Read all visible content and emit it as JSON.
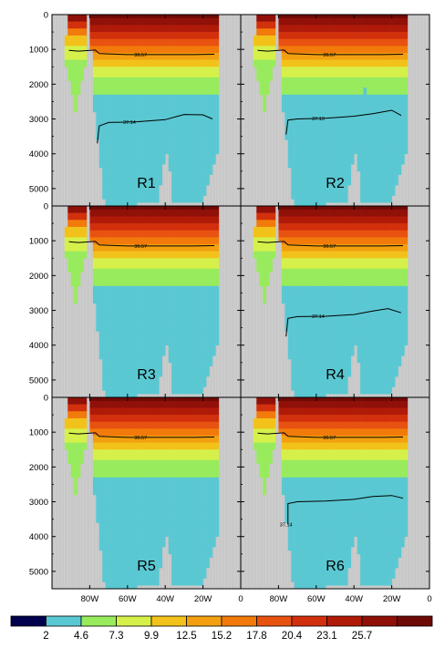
{
  "chart_data": {
    "type": "heatmap",
    "panel_labels": [
      "R1",
      "R2",
      "R3",
      "R4",
      "R5",
      "R6"
    ],
    "y_ticks": [
      0,
      1000,
      2000,
      3000,
      4000,
      5000
    ],
    "ylim": [
      0,
      5500
    ],
    "y_reversed": true,
    "xlim": [
      100,
      0
    ],
    "x_ticks": [
      {
        "value": 80,
        "label": "80W"
      },
      {
        "value": 60,
        "label": "60W"
      },
      {
        "value": 40,
        "label": "40W"
      },
      {
        "value": 20,
        "label": "20W"
      },
      {
        "value": 0,
        "label": "0"
      }
    ],
    "land_color": "#c8c8c8",
    "colorbar": {
      "labels": [
        "2",
        "4.6",
        "7.3",
        "9.9",
        "12.5",
        "15.2",
        "17.8",
        "20.4",
        "23.1",
        "25.7"
      ],
      "colors": [
        "#00004c",
        "#5ac8d2",
        "#98eb5c",
        "#d6f04a",
        "#f2c21a",
        "#f3a010",
        "#f27a0a",
        "#e85210",
        "#d2300c",
        "#b01a08",
        "#901008",
        "#6e0a06"
      ]
    },
    "isolines": [
      {
        "panel": "R1",
        "label": "36.57",
        "label_x": 53,
        "points": [
          [
            91,
            1030
          ],
          [
            86,
            1050
          ],
          [
            77,
            1020
          ],
          [
            75,
            1120
          ],
          [
            60,
            1150
          ],
          [
            40,
            1150
          ],
          [
            25,
            1150
          ],
          [
            14,
            1140
          ]
        ]
      },
      {
        "panel": "R1",
        "label": "37.14",
        "label_x": 59,
        "points": [
          [
            76,
            3700
          ],
          [
            75,
            3200
          ],
          [
            70,
            3100
          ],
          [
            55,
            3080
          ],
          [
            40,
            3020
          ],
          [
            30,
            2870
          ],
          [
            20,
            2880
          ],
          [
            15,
            3000
          ]
        ]
      },
      {
        "panel": "R2",
        "label": "36.57",
        "label_x": 53,
        "points": [
          [
            91,
            1030
          ],
          [
            86,
            1050
          ],
          [
            77,
            1020
          ],
          [
            75,
            1120
          ],
          [
            60,
            1150
          ],
          [
            40,
            1150
          ],
          [
            25,
            1150
          ],
          [
            14,
            1140
          ]
        ]
      },
      {
        "panel": "R2",
        "label": "37.13",
        "label_x": 59,
        "points": [
          [
            76,
            3450
          ],
          [
            75,
            3030
          ],
          [
            70,
            3000
          ],
          [
            55,
            2980
          ],
          [
            40,
            2920
          ],
          [
            30,
            2850
          ],
          [
            20,
            2750
          ],
          [
            15,
            2900
          ]
        ]
      },
      {
        "panel": "R3",
        "label": "36.57",
        "label_x": 53,
        "points": [
          [
            91,
            1030
          ],
          [
            86,
            1050
          ],
          [
            77,
            1020
          ],
          [
            75,
            1120
          ],
          [
            60,
            1150
          ],
          [
            40,
            1150
          ],
          [
            25,
            1150
          ],
          [
            14,
            1140
          ]
        ]
      },
      {
        "panel": "R4",
        "label": "36.57",
        "label_x": 53,
        "points": [
          [
            91,
            1030
          ],
          [
            86,
            1050
          ],
          [
            77,
            1020
          ],
          [
            75,
            1120
          ],
          [
            60,
            1150
          ],
          [
            40,
            1150
          ],
          [
            25,
            1150
          ],
          [
            14,
            1140
          ]
        ]
      },
      {
        "panel": "R4",
        "label": "37.14",
        "label_x": 59,
        "points": [
          [
            76,
            3750
          ],
          [
            75,
            3230
          ],
          [
            70,
            3180
          ],
          [
            55,
            3170
          ],
          [
            40,
            3120
          ],
          [
            30,
            3020
          ],
          [
            22,
            2950
          ],
          [
            15,
            3070
          ]
        ]
      },
      {
        "panel": "R5",
        "label": "36.57",
        "label_x": 53,
        "points": [
          [
            91,
            1030
          ],
          [
            86,
            1050
          ],
          [
            77,
            1020
          ],
          [
            75,
            1120
          ],
          [
            60,
            1150
          ],
          [
            40,
            1150
          ],
          [
            25,
            1150
          ],
          [
            14,
            1140
          ]
        ]
      },
      {
        "panel": "R6",
        "label": "36.57",
        "label_x": 53,
        "points": [
          [
            91,
            1030
          ],
          [
            86,
            1050
          ],
          [
            77,
            1020
          ],
          [
            75,
            1120
          ],
          [
            60,
            1150
          ],
          [
            40,
            1150
          ],
          [
            25,
            1150
          ],
          [
            14,
            1140
          ]
        ]
      },
      {
        "panel": "R6",
        "label": "37.14",
        "label_x": 76,
        "points": [
          [
            75,
            3650
          ],
          [
            75,
            3050
          ],
          [
            70,
            3000
          ],
          [
            55,
            2980
          ],
          [
            40,
            2930
          ],
          [
            30,
            2850
          ],
          [
            20,
            2820
          ],
          [
            14,
            2900
          ]
        ]
      }
    ]
  }
}
